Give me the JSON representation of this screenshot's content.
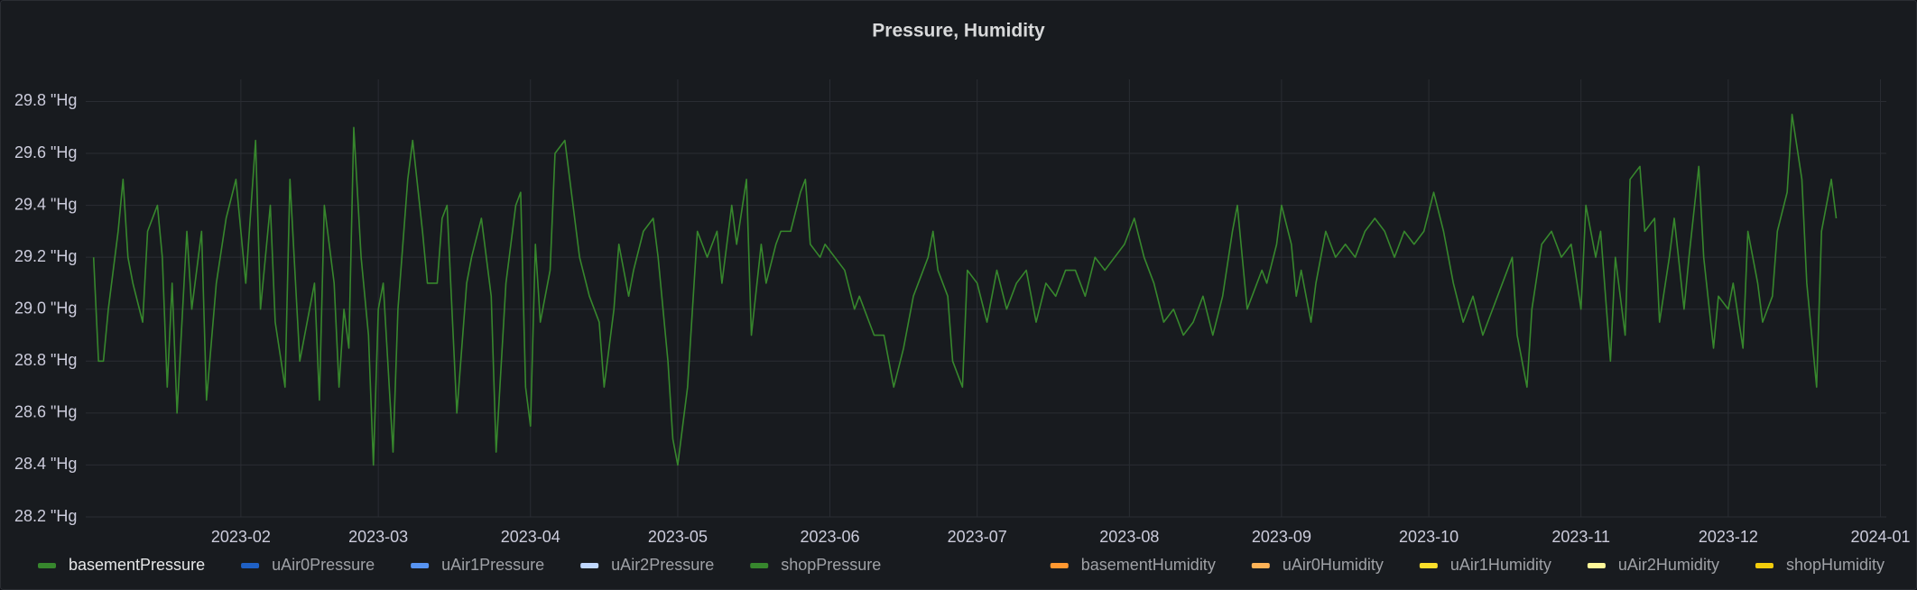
{
  "chart_data": {
    "type": "line",
    "title": "Pressure, Humidity",
    "x": [
      1,
      2,
      3,
      4,
      6,
      7,
      8,
      9,
      11,
      12,
      14,
      15,
      16,
      17,
      18,
      20,
      21,
      23,
      24,
      26,
      28,
      30,
      32,
      34,
      35,
      37,
      38,
      40,
      41,
      43,
      44,
      46,
      47,
      48,
      50,
      51,
      52,
      53,
      54,
      55.5,
      57,
      58,
      59,
      60,
      62,
      63,
      65,
      66,
      68,
      69,
      71,
      72,
      73,
      75,
      77,
      78,
      80,
      81,
      82,
      83,
      85,
      87,
      88,
      89,
      90,
      91,
      92,
      94,
      95,
      97,
      98,
      100,
      102,
      104,
      105,
      107,
      108,
      110,
      111,
      113,
      115,
      116,
      118,
      119,
      120,
      122,
      123,
      124,
      126,
      128,
      129,
      131,
      132,
      134,
      135,
      137,
      138,
      140,
      141,
      143,
      145,
      146,
      147,
      149,
      150,
      152,
      154,
      156,
      157,
      159,
      160,
      162,
      164,
      166,
      168,
      169,
      171,
      172,
      173,
      175,
      176,
      178,
      179,
      181,
      183,
      185,
      187,
      189,
      191,
      193,
      195,
      197,
      199,
      201,
      203,
      205,
      207,
      209,
      211,
      213,
      215,
      217,
      219,
      221,
      223,
      225,
      227,
      229,
      231,
      233,
      234,
      236,
      237,
      239,
      240,
      242,
      243,
      245,
      246,
      247,
      249,
      250,
      252,
      254,
      256,
      258,
      260,
      262,
      264,
      266,
      268,
      270,
      272,
      274,
      276,
      278,
      280,
      282,
      284,
      286,
      288,
      290,
      291,
      293,
      294,
      296,
      298,
      300,
      302,
      304,
      305,
      307,
      308,
      310,
      311,
      313,
      314,
      316,
      317,
      319,
      320,
      322,
      323,
      325,
      326,
      328,
      329,
      331,
      332,
      334,
      335,
      337,
      338,
      340,
      341,
      343,
      344,
      346,
      347,
      349,
      350,
      352,
      353,
      355,
      356
    ],
    "series": [
      {
        "name": "basementPressure",
        "color": "#37872d",
        "legend_side": "left",
        "values": [
          29.2,
          28.8,
          28.8,
          29.0,
          29.3,
          29.5,
          29.2,
          29.1,
          28.95,
          29.3,
          29.4,
          29.2,
          28.7,
          29.1,
          28.6,
          29.3,
          29.0,
          29.3,
          28.65,
          29.1,
          29.35,
          29.5,
          29.1,
          29.65,
          29.0,
          29.4,
          28.95,
          28.7,
          29.5,
          28.8,
          28.9,
          29.1,
          28.65,
          29.4,
          29.1,
          28.7,
          29.0,
          28.85,
          29.7,
          29.2,
          28.9,
          28.4,
          29.0,
          29.1,
          28.45,
          29.0,
          29.5,
          29.65,
          29.3,
          29.1,
          29.1,
          29.35,
          29.4,
          28.6,
          29.1,
          29.2,
          29.35,
          29.2,
          29.05,
          28.45,
          29.1,
          29.4,
          29.45,
          28.7,
          28.55,
          29.25,
          28.95,
          29.15,
          29.6,
          29.65,
          29.5,
          29.2,
          29.05,
          28.95,
          28.7,
          29.0,
          29.25,
          29.05,
          29.15,
          29.3,
          29.35,
          29.2,
          28.8,
          28.5,
          28.4,
          28.7,
          29.0,
          29.3,
          29.2,
          29.3,
          29.1,
          29.4,
          29.25,
          29.5,
          28.9,
          29.25,
          29.1,
          29.25,
          29.3,
          29.3,
          29.45,
          29.5,
          29.25,
          29.2,
          29.25,
          29.2,
          29.15,
          29.0,
          29.05,
          28.95,
          28.9,
          28.9,
          28.7,
          28.85,
          29.05,
          29.1,
          29.2,
          29.3,
          29.15,
          29.05,
          28.8,
          28.7,
          29.15,
          29.1,
          28.95,
          29.15,
          29.0,
          29.1,
          29.15,
          28.95,
          29.1,
          29.05,
          29.15,
          29.15,
          29.05,
          29.2,
          29.15,
          29.2,
          29.25,
          29.35,
          29.2,
          29.1,
          28.95,
          29.0,
          28.9,
          28.95,
          29.05,
          28.9,
          29.05,
          29.3,
          29.4,
          29.0,
          29.05,
          29.15,
          29.1,
          29.25,
          29.4,
          29.25,
          29.05,
          29.15,
          28.95,
          29.1,
          29.3,
          29.2,
          29.25,
          29.2,
          29.3,
          29.35,
          29.3,
          29.2,
          29.3,
          29.25,
          29.3,
          29.45,
          29.3,
          29.1,
          28.95,
          29.05,
          28.9,
          29.0,
          29.1,
          29.2,
          28.9,
          28.7,
          29.0,
          29.25,
          29.3,
          29.2,
          29.25,
          29.0,
          29.4,
          29.2,
          29.3,
          28.8,
          29.2,
          28.9,
          29.5,
          29.55,
          29.3,
          29.35,
          28.95,
          29.2,
          29.35,
          29.0,
          29.2,
          29.55,
          29.2,
          28.85,
          29.05,
          29.0,
          29.1,
          28.85,
          29.3,
          29.1,
          28.95,
          29.05,
          29.3,
          29.45,
          29.75,
          29.5,
          29.1,
          28.7,
          29.3,
          29.5,
          29.35
        ]
      },
      {
        "name": "uAir0Pressure",
        "color": "#1f60c4",
        "legend_side": "left"
      },
      {
        "name": "uAir1Pressure",
        "color": "#5794f2",
        "legend_side": "left"
      },
      {
        "name": "uAir2Pressure",
        "color": "#c0d8ff",
        "legend_side": "left"
      },
      {
        "name": "shopPressure",
        "color": "#37872d",
        "legend_side": "left"
      },
      {
        "name": "basementHumidity",
        "color": "#ff9830",
        "legend_side": "right"
      },
      {
        "name": "uAir0Humidity",
        "color": "#ffb357",
        "legend_side": "right"
      },
      {
        "name": "uAir1Humidity",
        "color": "#fade2a",
        "legend_side": "right"
      },
      {
        "name": "uAir2Humidity",
        "color": "#fff899",
        "legend_side": "right"
      },
      {
        "name": "shopHumidity",
        "color": "#f2cc0c",
        "legend_side": "right"
      }
    ],
    "xlim": [
      -0.6,
      366.2
    ],
    "xticks": [
      {
        "value": 31,
        "label": "2023-02"
      },
      {
        "value": 59,
        "label": "2023-03"
      },
      {
        "value": 90,
        "label": "2023-04"
      },
      {
        "value": 120,
        "label": "2023-05"
      },
      {
        "value": 151,
        "label": "2023-06"
      },
      {
        "value": 181,
        "label": "2023-07"
      },
      {
        "value": 212,
        "label": "2023-08"
      },
      {
        "value": 243,
        "label": "2023-09"
      },
      {
        "value": 273,
        "label": "2023-10"
      },
      {
        "value": 304,
        "label": "2023-11"
      },
      {
        "value": 334,
        "label": "2023-12"
      },
      {
        "value": 365,
        "label": "2024-01"
      }
    ],
    "ylim": [
      28.2,
      29.885
    ],
    "yticks": [
      {
        "value": 28.2,
        "label": "28.2 \"Hg"
      },
      {
        "value": 28.4,
        "label": "28.4 \"Hg"
      },
      {
        "value": 28.6,
        "label": "28.6 \"Hg"
      },
      {
        "value": 28.8,
        "label": "28.8 \"Hg"
      },
      {
        "value": 29.0,
        "label": "29.0 \"Hg"
      },
      {
        "value": 29.2,
        "label": "29.2 \"Hg"
      },
      {
        "value": 29.4,
        "label": "29.4 \"Hg"
      },
      {
        "value": 29.6,
        "label": "29.6 \"Hg"
      },
      {
        "value": 29.8,
        "label": "29.8 \"Hg"
      }
    ],
    "grid": true
  }
}
